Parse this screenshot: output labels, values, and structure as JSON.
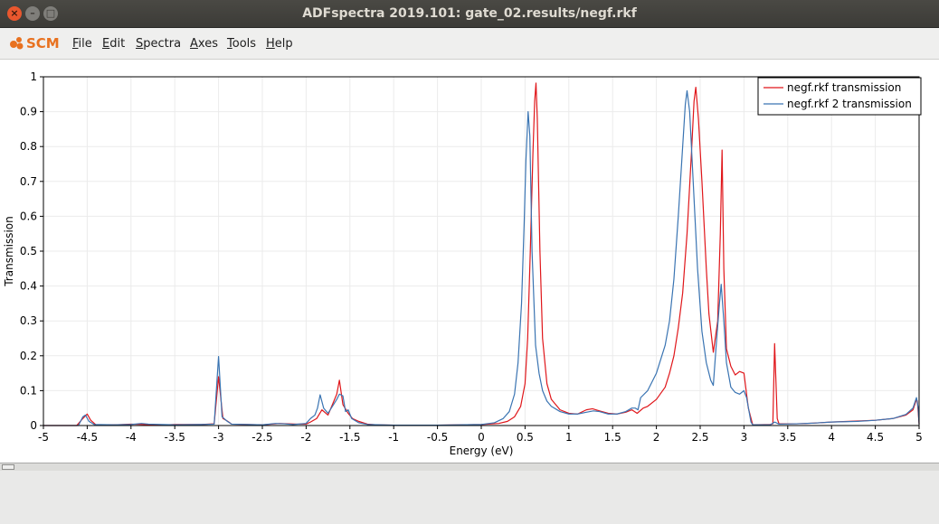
{
  "window": {
    "title": "ADFspectra 2019.101: gate_02.results/negf.rkf"
  },
  "app": {
    "logo_text": "SCM",
    "brand_color": "#e8711f"
  },
  "menus": [
    {
      "first": "F",
      "rest": "ile"
    },
    {
      "first": "E",
      "rest": "dit"
    },
    {
      "first": "S",
      "rest": "pectra"
    },
    {
      "first": "A",
      "rest": "xes"
    },
    {
      "first": "T",
      "rest": "ools"
    },
    {
      "first": "H",
      "rest": "elp"
    }
  ],
  "chart_data": {
    "type": "line",
    "xlabel": "Energy (eV)",
    "ylabel": "Transmission",
    "xlim": [
      -5,
      5
    ],
    "ylim": [
      0,
      1
    ],
    "xticks": [
      -5,
      -4.5,
      -4,
      -3.5,
      -3,
      -2.5,
      -2,
      -1.5,
      -1,
      -0.5,
      0,
      0.5,
      1,
      1.5,
      2,
      2.5,
      3,
      3.5,
      4,
      4.5,
      5
    ],
    "yticks": [
      0,
      0.1,
      0.2,
      0.3,
      0.4,
      0.5,
      0.6,
      0.7,
      0.8,
      0.9,
      1
    ],
    "grid": true,
    "legend_position": "top-right",
    "series": [
      {
        "name": "negf.rkf transmission",
        "color": "#e0161a",
        "points": [
          [
            -5,
            0
          ],
          [
            -4.62,
            0
          ],
          [
            -4.55,
            0.02
          ],
          [
            -4.5,
            0.033
          ],
          [
            -4.46,
            0.015
          ],
          [
            -4.4,
            0.002
          ],
          [
            -4.2,
            0.002
          ],
          [
            -4,
            0.004
          ],
          [
            -3.85,
            0.003
          ],
          [
            -3.6,
            0.002
          ],
          [
            -3.5,
            0.003
          ],
          [
            -3.2,
            0.003
          ],
          [
            -3.05,
            0.005
          ],
          [
            -3,
            0.14
          ],
          [
            -2.95,
            0.02
          ],
          [
            -2.9,
            0.013
          ],
          [
            -2.85,
            0.004
          ],
          [
            -2.5,
            0.002
          ],
          [
            -2.3,
            0.006
          ],
          [
            -2.1,
            0.004
          ],
          [
            -2,
            0.004
          ],
          [
            -1.95,
            0.01
          ],
          [
            -1.88,
            0.02
          ],
          [
            -1.82,
            0.045
          ],
          [
            -1.75,
            0.03
          ],
          [
            -1.7,
            0.06
          ],
          [
            -1.65,
            0.09
          ],
          [
            -1.62,
            0.13
          ],
          [
            -1.58,
            0.06
          ],
          [
            -1.52,
            0.035
          ],
          [
            -1.47,
            0.02
          ],
          [
            -1.4,
            0.012
          ],
          [
            -1.3,
            0.004
          ],
          [
            -1.2,
            0.002
          ],
          [
            -1,
            0.001
          ],
          [
            -0.5,
            0.001
          ],
          [
            0,
            0.003
          ],
          [
            0.2,
            0.006
          ],
          [
            0.3,
            0.012
          ],
          [
            0.38,
            0.025
          ],
          [
            0.45,
            0.055
          ],
          [
            0.5,
            0.12
          ],
          [
            0.53,
            0.25
          ],
          [
            0.56,
            0.5
          ],
          [
            0.59,
            0.78
          ],
          [
            0.61,
            0.93
          ],
          [
            0.625,
            0.982
          ],
          [
            0.64,
            0.88
          ],
          [
            0.67,
            0.5
          ],
          [
            0.7,
            0.25
          ],
          [
            0.75,
            0.12
          ],
          [
            0.8,
            0.075
          ],
          [
            0.9,
            0.045
          ],
          [
            1,
            0.035
          ],
          [
            1.1,
            0.033
          ],
          [
            1.2,
            0.045
          ],
          [
            1.27,
            0.048
          ],
          [
            1.35,
            0.042
          ],
          [
            1.45,
            0.035
          ],
          [
            1.55,
            0.033
          ],
          [
            1.65,
            0.038
          ],
          [
            1.72,
            0.045
          ],
          [
            1.78,
            0.035
          ],
          [
            1.85,
            0.05
          ],
          [
            1.9,
            0.055
          ],
          [
            2,
            0.075
          ],
          [
            2.1,
            0.11
          ],
          [
            2.15,
            0.15
          ],
          [
            2.2,
            0.2
          ],
          [
            2.25,
            0.28
          ],
          [
            2.3,
            0.38
          ],
          [
            2.35,
            0.55
          ],
          [
            2.4,
            0.78
          ],
          [
            2.43,
            0.93
          ],
          [
            2.45,
            0.97
          ],
          [
            2.48,
            0.88
          ],
          [
            2.52,
            0.7
          ],
          [
            2.57,
            0.45
          ],
          [
            2.6,
            0.32
          ],
          [
            2.65,
            0.21
          ],
          [
            2.7,
            0.3
          ],
          [
            2.73,
            0.55
          ],
          [
            2.75,
            0.79
          ],
          [
            2.77,
            0.45
          ],
          [
            2.8,
            0.22
          ],
          [
            2.85,
            0.17
          ],
          [
            2.9,
            0.145
          ],
          [
            2.95,
            0.155
          ],
          [
            3,
            0.15
          ],
          [
            3.05,
            0.05
          ],
          [
            3.1,
            0.002
          ],
          [
            3.3,
            0.003
          ],
          [
            3.33,
            0.005
          ],
          [
            3.35,
            0.235
          ],
          [
            3.38,
            0.02
          ],
          [
            3.4,
            0.005
          ],
          [
            3.6,
            0.005
          ],
          [
            3.8,
            0.007
          ],
          [
            4,
            0.01
          ],
          [
            4.3,
            0.013
          ],
          [
            4.5,
            0.015
          ],
          [
            4.7,
            0.02
          ],
          [
            4.85,
            0.03
          ],
          [
            4.93,
            0.045
          ],
          [
            4.97,
            0.075
          ],
          [
            4.98,
            0.07
          ],
          [
            5,
            0.005
          ]
        ]
      },
      {
        "name": "negf.rkf 2 transmission",
        "color": "#3a74b2",
        "points": [
          [
            -5,
            0
          ],
          [
            -4.6,
            0
          ],
          [
            -4.55,
            0.025
          ],
          [
            -4.52,
            0.03
          ],
          [
            -4.48,
            0.012
          ],
          [
            -4.42,
            0.003
          ],
          [
            -4.2,
            0.002
          ],
          [
            -4,
            0.003
          ],
          [
            -3.88,
            0.006
          ],
          [
            -3.8,
            0.004
          ],
          [
            -3.5,
            0.002
          ],
          [
            -3.2,
            0.003
          ],
          [
            -3.05,
            0.004
          ],
          [
            -3,
            0.198
          ],
          [
            -2.96,
            0.025
          ],
          [
            -2.9,
            0.012
          ],
          [
            -2.85,
            0.004
          ],
          [
            -2.5,
            0.002
          ],
          [
            -2.35,
            0.006
          ],
          [
            -2.25,
            0.005
          ],
          [
            -2.15,
            0.003
          ],
          [
            -2,
            0.006
          ],
          [
            -1.95,
            0.02
          ],
          [
            -1.9,
            0.03
          ],
          [
            -1.87,
            0.05
          ],
          [
            -1.84,
            0.088
          ],
          [
            -1.8,
            0.05
          ],
          [
            -1.75,
            0.035
          ],
          [
            -1.7,
            0.055
          ],
          [
            -1.65,
            0.075
          ],
          [
            -1.62,
            0.09
          ],
          [
            -1.58,
            0.085
          ],
          [
            -1.55,
            0.04
          ],
          [
            -1.52,
            0.045
          ],
          [
            -1.48,
            0.02
          ],
          [
            -1.4,
            0.008
          ],
          [
            -1.3,
            0.003
          ],
          [
            -1,
            0.001
          ],
          [
            -0.5,
            0.001
          ],
          [
            0,
            0.003
          ],
          [
            0.15,
            0.008
          ],
          [
            0.25,
            0.02
          ],
          [
            0.32,
            0.04
          ],
          [
            0.38,
            0.09
          ],
          [
            0.42,
            0.18
          ],
          [
            0.46,
            0.35
          ],
          [
            0.49,
            0.58
          ],
          [
            0.51,
            0.76
          ],
          [
            0.535,
            0.9
          ],
          [
            0.555,
            0.83
          ],
          [
            0.58,
            0.5
          ],
          [
            0.62,
            0.23
          ],
          [
            0.66,
            0.15
          ],
          [
            0.7,
            0.1
          ],
          [
            0.75,
            0.07
          ],
          [
            0.8,
            0.055
          ],
          [
            0.9,
            0.04
          ],
          [
            1,
            0.033
          ],
          [
            1.1,
            0.033
          ],
          [
            1.2,
            0.038
          ],
          [
            1.28,
            0.042
          ],
          [
            1.35,
            0.04
          ],
          [
            1.45,
            0.033
          ],
          [
            1.55,
            0.033
          ],
          [
            1.65,
            0.04
          ],
          [
            1.72,
            0.05
          ],
          [
            1.76,
            0.05
          ],
          [
            1.79,
            0.045
          ],
          [
            1.82,
            0.08
          ],
          [
            1.9,
            0.1
          ],
          [
            2,
            0.15
          ],
          [
            2.1,
            0.23
          ],
          [
            2.15,
            0.3
          ],
          [
            2.2,
            0.42
          ],
          [
            2.25,
            0.6
          ],
          [
            2.3,
            0.8
          ],
          [
            2.33,
            0.92
          ],
          [
            2.35,
            0.96
          ],
          [
            2.38,
            0.9
          ],
          [
            2.42,
            0.7
          ],
          [
            2.47,
            0.45
          ],
          [
            2.52,
            0.27
          ],
          [
            2.57,
            0.18
          ],
          [
            2.62,
            0.13
          ],
          [
            2.65,
            0.115
          ],
          [
            2.68,
            0.22
          ],
          [
            2.72,
            0.35
          ],
          [
            2.74,
            0.405
          ],
          [
            2.77,
            0.3
          ],
          [
            2.8,
            0.18
          ],
          [
            2.85,
            0.11
          ],
          [
            2.9,
            0.095
          ],
          [
            2.95,
            0.09
          ],
          [
            3,
            0.1
          ],
          [
            3.03,
            0.08
          ],
          [
            3.08,
            0.01
          ],
          [
            3.1,
            0.002
          ],
          [
            3.3,
            0.002
          ],
          [
            3.35,
            0.01
          ],
          [
            3.4,
            0.004
          ],
          [
            3.6,
            0.005
          ],
          [
            3.8,
            0.007
          ],
          [
            4,
            0.01
          ],
          [
            4.3,
            0.012
          ],
          [
            4.5,
            0.015
          ],
          [
            4.7,
            0.02
          ],
          [
            4.85,
            0.032
          ],
          [
            4.93,
            0.05
          ],
          [
            4.97,
            0.08
          ],
          [
            4.99,
            0.05
          ],
          [
            5,
            0.003
          ]
        ]
      }
    ]
  }
}
